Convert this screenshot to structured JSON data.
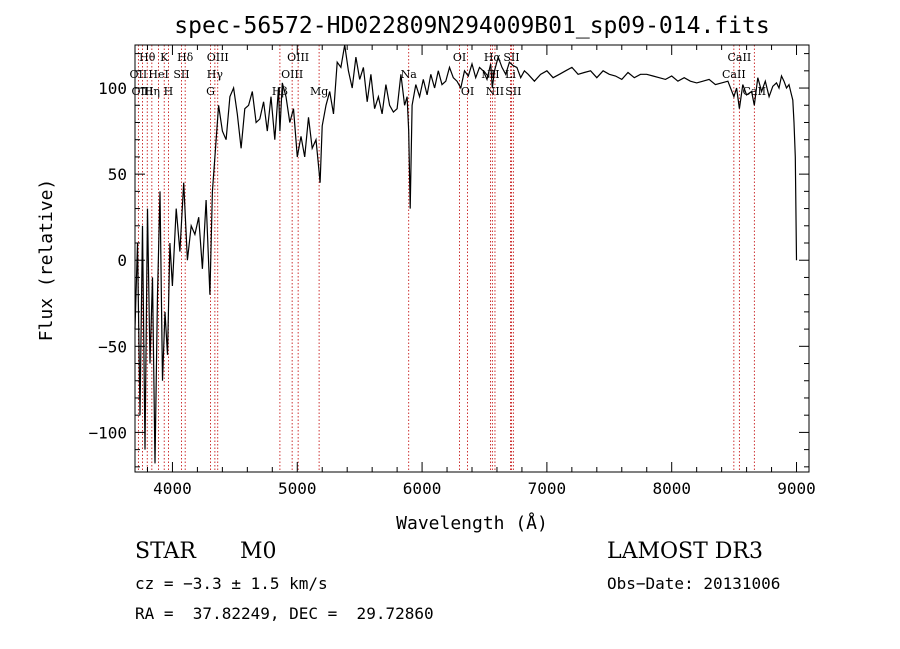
{
  "chart_data": {
    "type": "line",
    "title": "spec-56572-HD022809N294009B01_sp09-014.fits",
    "xlabel": "Wavelength (Å)",
    "ylabel": "Flux (relative)",
    "xlim": [
      3700,
      9100
    ],
    "ylim": [
      -123,
      125
    ],
    "x_ticks": [
      4000,
      5000,
      6000,
      7000,
      8000,
      9000
    ],
    "y_ticks": [
      -100,
      -50,
      0,
      50,
      100
    ],
    "x_tick_labels": [
      "4000",
      "5000",
      "6000",
      "7000",
      "8000",
      "9000"
    ],
    "y_tick_labels": [
      "−100",
      "−50",
      "0",
      "50",
      "100"
    ],
    "grid": false,
    "series": [
      {
        "name": "flux",
        "x": [
          3700,
          3720,
          3740,
          3760,
          3780,
          3800,
          3820,
          3840,
          3860,
          3880,
          3900,
          3920,
          3940,
          3960,
          3980,
          4000,
          4030,
          4060,
          4090,
          4120,
          4150,
          4180,
          4210,
          4240,
          4270,
          4300,
          4320,
          4340,
          4370,
          4400,
          4430,
          4460,
          4490,
          4520,
          4550,
          4580,
          4610,
          4640,
          4670,
          4700,
          4730,
          4760,
          4790,
          4820,
          4850,
          4861,
          4880,
          4910,
          4940,
          4970,
          5000,
          5030,
          5060,
          5090,
          5120,
          5150,
          5170,
          5183,
          5200,
          5230,
          5260,
          5290,
          5320,
          5350,
          5380,
          5410,
          5440,
          5470,
          5500,
          5530,
          5560,
          5590,
          5620,
          5650,
          5680,
          5710,
          5740,
          5770,
          5800,
          5830,
          5860,
          5880,
          5893,
          5905,
          5920,
          5950,
          5980,
          6010,
          6040,
          6070,
          6100,
          6130,
          6160,
          6190,
          6220,
          6250,
          6280,
          6310,
          6340,
          6370,
          6400,
          6430,
          6460,
          6490,
          6520,
          6550,
          6563,
          6580,
          6610,
          6640,
          6670,
          6700,
          6730,
          6760,
          6790,
          6820,
          6850,
          6900,
          6950,
          7000,
          7050,
          7100,
          7150,
          7200,
          7250,
          7300,
          7350,
          7400,
          7450,
          7500,
          7550,
          7600,
          7650,
          7700,
          7750,
          7800,
          7850,
          7900,
          7950,
          8000,
          8050,
          8100,
          8150,
          8200,
          8250,
          8300,
          8350,
          8400,
          8450,
          8498,
          8520,
          8542,
          8570,
          8600,
          8640,
          8662,
          8690,
          8720,
          8750,
          8780,
          8810,
          8840,
          8860,
          8880,
          8900,
          8920,
          8940,
          8960,
          8970,
          8980,
          8990,
          9000
        ],
        "y": [
          -40,
          10,
          -90,
          20,
          -110,
          30,
          -60,
          -10,
          -118,
          -20,
          40,
          -70,
          -30,
          -55,
          10,
          -15,
          30,
          5,
          45,
          0,
          20,
          15,
          25,
          -5,
          35,
          -20,
          40,
          60,
          90,
          75,
          70,
          95,
          100,
          85,
          65,
          88,
          90,
          98,
          80,
          82,
          92,
          75,
          95,
          70,
          100,
          75,
          103,
          95,
          80,
          88,
          60,
          72,
          60,
          83,
          65,
          70,
          55,
          45,
          78,
          90,
          98,
          85,
          115,
          112,
          125,
          110,
          100,
          118,
          105,
          112,
          92,
          108,
          88,
          95,
          85,
          102,
          90,
          86,
          88,
          108,
          90,
          95,
          75,
          30,
          90,
          102,
          95,
          105,
          96,
          108,
          100,
          110,
          102,
          104,
          112,
          106,
          104,
          100,
          110,
          107,
          114,
          106,
          112,
          110,
          105,
          114,
          100,
          110,
          118,
          112,
          108,
          115,
          113,
          112,
          106,
          110,
          108,
          104,
          108,
          110,
          106,
          108,
          110,
          112,
          108,
          109,
          110,
          106,
          110,
          108,
          107,
          105,
          109,
          106,
          108,
          108,
          107,
          106,
          105,
          107,
          104,
          106,
          104,
          103,
          104,
          105,
          102,
          103,
          104,
          95,
          100,
          88,
          102,
          96,
          98,
          90,
          106,
          98,
          104,
          95,
          101,
          103,
          100,
          107,
          104,
          100,
          102,
          96,
          93,
          80,
          60,
          0
        ]
      }
    ],
    "line_markers": [
      {
        "label": "Hθ",
        "wavelength": 3798,
        "row": 1
      },
      {
        "label": "OII",
        "wavelength": 3727,
        "row": 2
      },
      {
        "label": "OIII",
        "wavelength": 3760,
        "row": 3
      },
      {
        "label": "K",
        "wavelength": 3934,
        "row": 1
      },
      {
        "label": "HeI",
        "wavelength": 3889,
        "row": 2
      },
      {
        "label": "Hη",
        "wavelength": 3835,
        "row": 3
      },
      {
        "label": "Hδ",
        "wavelength": 4102,
        "row": 1
      },
      {
        "label": "SII",
        "wavelength": 4072,
        "row": 2
      },
      {
        "label": "H",
        "wavelength": 3968,
        "row": 3
      },
      {
        "label": "OIII",
        "wavelength": 4363,
        "row": 1
      },
      {
        "label": "Hγ",
        "wavelength": 4340,
        "row": 2
      },
      {
        "label": "G",
        "wavelength": 4305,
        "row": 3
      },
      {
        "label": "OIII",
        "wavelength": 5007,
        "row": 1
      },
      {
        "label": "OIII",
        "wavelength": 4959,
        "row": 2
      },
      {
        "label": "Hβ",
        "wavelength": 4861,
        "row": 3
      },
      {
        "label": "Mg",
        "wavelength": 5175,
        "row": 3
      },
      {
        "label": "Na",
        "wavelength": 5893,
        "row": 2
      },
      {
        "label": "OI",
        "wavelength": 6300,
        "row": 1
      },
      {
        "label": "OI",
        "wavelength": 6364,
        "row": 3
      },
      {
        "label": "Hα",
        "wavelength": 6563,
        "row": 1
      },
      {
        "label": "SII",
        "wavelength": 6716,
        "row": 1
      },
      {
        "label": "NII",
        "wavelength": 6548,
        "row": 2
      },
      {
        "label": "Li",
        "wavelength": 6708,
        "row": 2
      },
      {
        "label": "NII",
        "wavelength": 6584,
        "row": 3
      },
      {
        "label": "SII",
        "wavelength": 6731,
        "row": 3
      },
      {
        "label": "CaII",
        "wavelength": 8542,
        "row": 1
      },
      {
        "label": "CaII",
        "wavelength": 8498,
        "row": 2
      },
      {
        "label": "CaII",
        "wavelength": 8662,
        "row": 3
      }
    ]
  },
  "footer": {
    "object_class": "STAR",
    "subclass": "M0",
    "survey": "LAMOST DR3",
    "cz": "cz = −3.3 ± 1.5 km/s",
    "obs_date": "Obs−Date: 20131006",
    "coords": "RA =  37.82249, DEC =  29.72860"
  }
}
